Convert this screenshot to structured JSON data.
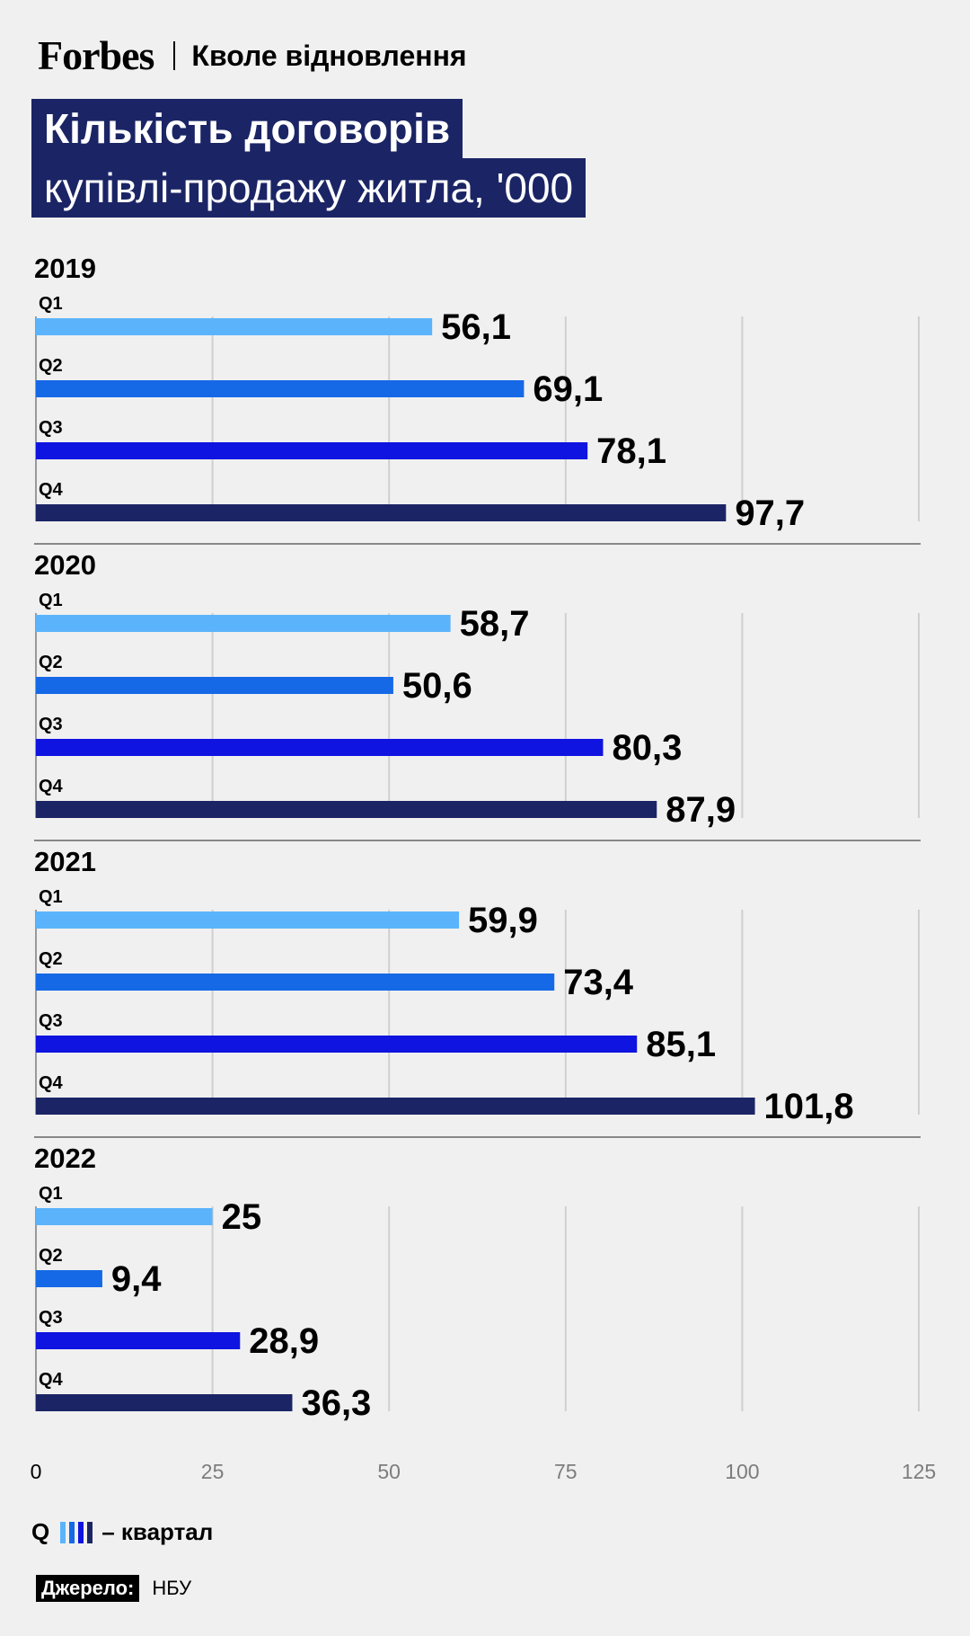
{
  "header": {
    "brand": "Forbes",
    "section": "Кволе відновлення"
  },
  "title": {
    "line1": "Кількість договорів",
    "line2": "купівлі-продажу житла, '000"
  },
  "colors": {
    "Q1": "#5bb4fb",
    "Q2": "#1569e6",
    "Q3": "#0f14e0",
    "Q4": "#1b2565",
    "title_bg": "#1b2565"
  },
  "chart_data": {
    "type": "bar",
    "orientation": "horizontal",
    "xlim": [
      0,
      125
    ],
    "xticks": [
      "0",
      "25",
      "50",
      "75",
      "100",
      "125"
    ],
    "grid": true,
    "quarters": [
      "Q1",
      "Q2",
      "Q3",
      "Q4"
    ],
    "groups": [
      {
        "year": "2019",
        "values": [
          56.1,
          69.1,
          78.1,
          97.7
        ],
        "labels": [
          "56,1",
          "69,1",
          "78,1",
          "97,7"
        ]
      },
      {
        "year": "2020",
        "values": [
          58.7,
          50.6,
          80.3,
          87.9
        ],
        "labels": [
          "58,7",
          "50,6",
          "80,3",
          "87,9"
        ]
      },
      {
        "year": "2021",
        "values": [
          59.9,
          73.4,
          85.1,
          101.8
        ],
        "labels": [
          "59,9",
          "73,4",
          "85,1",
          "101,8"
        ]
      },
      {
        "year": "2022",
        "values": [
          25,
          9.4,
          28.9,
          36.3
        ],
        "labels": [
          "25",
          "9,4",
          "28,9",
          "36,3"
        ]
      }
    ]
  },
  "legend": {
    "prefix": "Q",
    "text": "– квартал"
  },
  "source": {
    "label": "Джерело:",
    "value": "НБУ"
  }
}
